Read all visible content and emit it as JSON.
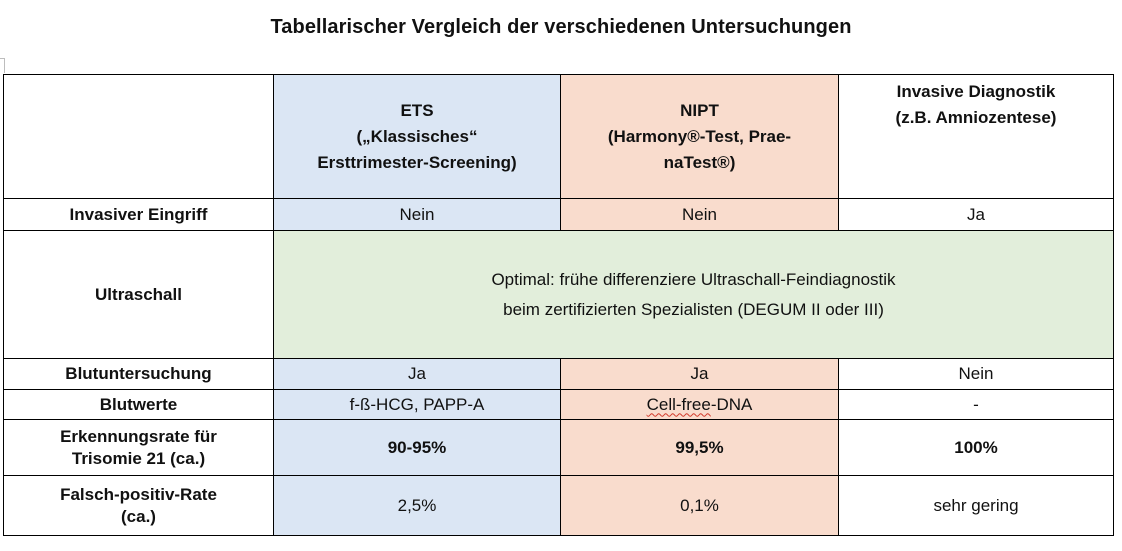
{
  "title": "Tabellarischer Vergleich der verschiedenen Untersuchungen",
  "columns": {
    "ets": [
      "ETS",
      "(„Klassisches“",
      "Ersttrimester-Screening)"
    ],
    "nipt": [
      "NIPT",
      "(Harmony®-Test, Prae-",
      "naTest®)"
    ],
    "invasive": [
      "Invasive Diagnostik",
      "(z.B. Amniozentese)"
    ]
  },
  "rows": {
    "eingriff": {
      "label": "Invasiver Eingriff",
      "ets": "Nein",
      "nipt": "Nein",
      "invasive": "Ja"
    },
    "ultraschall": {
      "label": "Ultraschall",
      "lines": [
        "Optimal: frühe differenziere Ultraschall-Feindiagnostik",
        "beim zertifizierten Spezialisten (DEGUM II oder III)"
      ]
    },
    "blut": {
      "label": "Blutuntersuchung",
      "ets": "Ja",
      "nipt": "Ja",
      "invasive": "Nein"
    },
    "blutwerte": {
      "label": "Blutwerte",
      "ets": "f-ß-HCG, PAPP-A",
      "nipt_a": "Cell-free",
      "nipt_b": "-DNA",
      "invasive": "-"
    },
    "erkennung": {
      "label": [
        "Erkennungsrate für",
        "Trisomie 21 (ca.)"
      ],
      "ets": "90-95%",
      "nipt": "99,5%",
      "invasive": "100%"
    },
    "falsch": {
      "label": [
        "Falsch-positiv-Rate",
        "(ca.)"
      ],
      "ets": "2,5%",
      "nipt": "0,1%",
      "invasive": "sehr gering"
    }
  }
}
